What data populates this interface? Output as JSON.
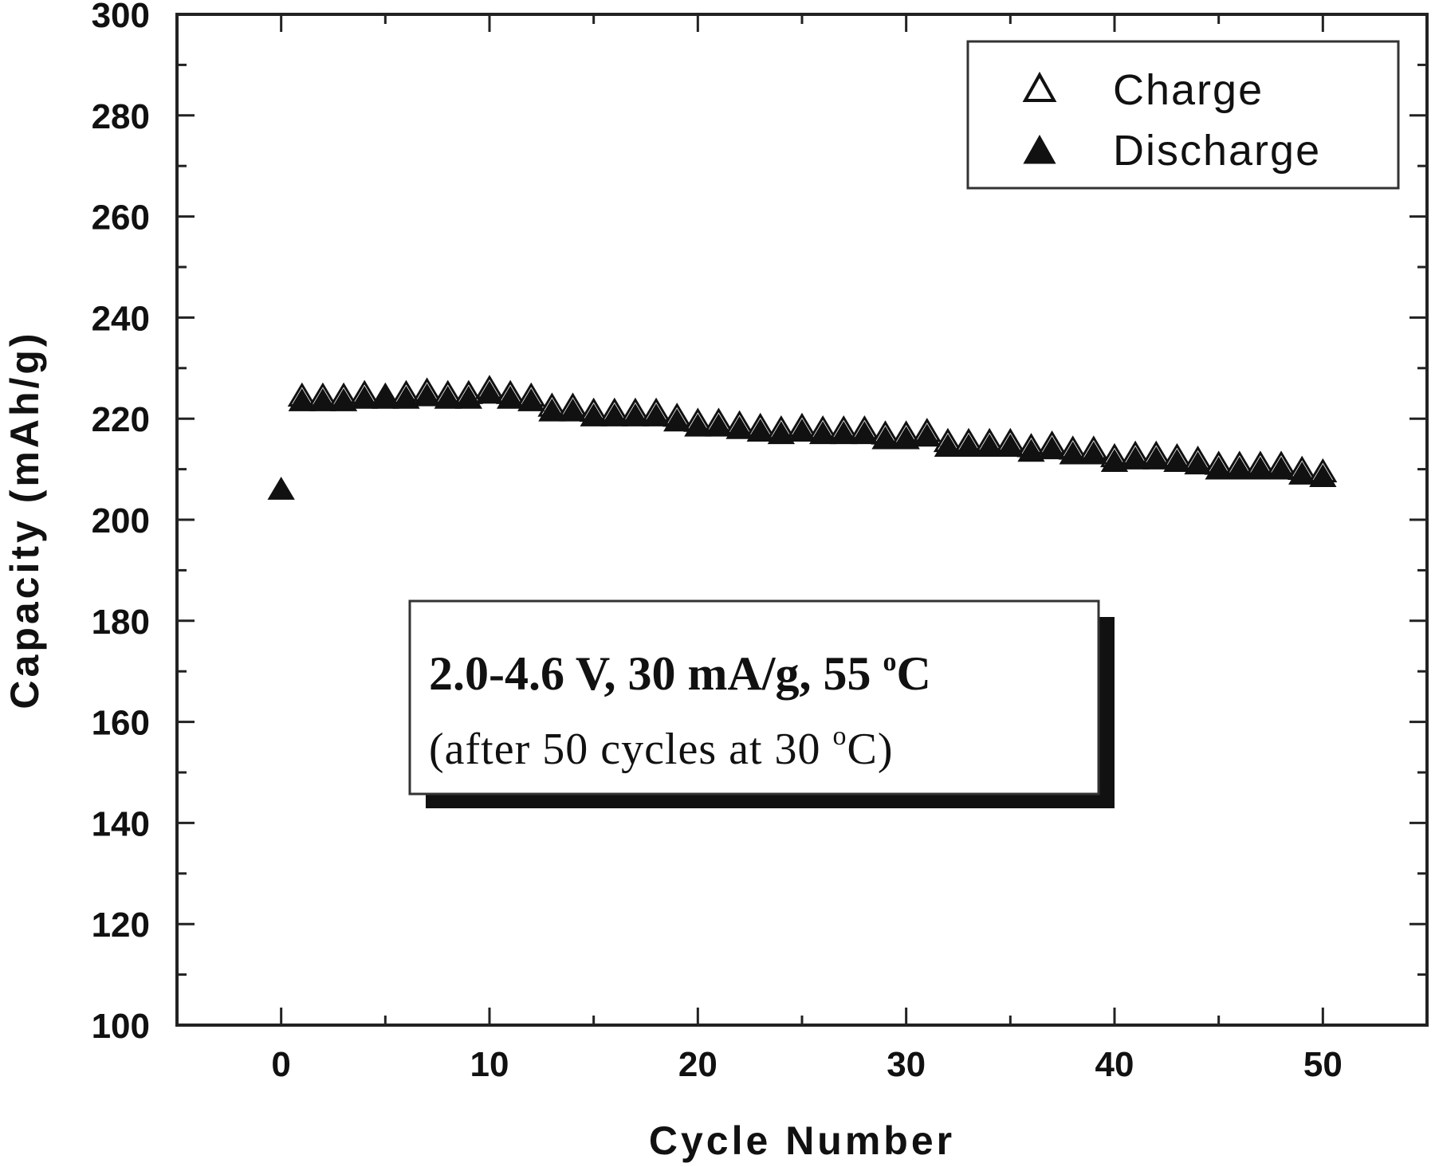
{
  "chart_data": {
    "type": "scatter",
    "xlabel": "Cycle Number",
    "ylabel": "Capacity (mAh/g)",
    "xlim": [
      -5,
      55
    ],
    "ylim": [
      100,
      300
    ],
    "x_ticks": [
      0,
      10,
      20,
      30,
      40,
      50
    ],
    "y_ticks": [
      100,
      120,
      140,
      160,
      180,
      200,
      220,
      240,
      260,
      280,
      300
    ],
    "legend_position": "top-right",
    "grid": false,
    "series": [
      {
        "name": "Charge",
        "marker": "open-triangle",
        "x": [
          1,
          2,
          3,
          4,
          5,
          6,
          7,
          8,
          9,
          10,
          11,
          12,
          13,
          14,
          15,
          16,
          17,
          18,
          19,
          20,
          21,
          22,
          23,
          24,
          25,
          26,
          27,
          28,
          29,
          30,
          31,
          32,
          33,
          34,
          35,
          36,
          37,
          38,
          39,
          40,
          41,
          42,
          43,
          44,
          45,
          46,
          47,
          48,
          49,
          50
        ],
        "values": [
          224.5,
          224.5,
          224.5,
          225,
          224.5,
          225,
          225.5,
          225,
          225,
          226,
          225,
          224.5,
          222.5,
          222.5,
          221.5,
          221.5,
          221.5,
          221.5,
          220.5,
          219.5,
          219.5,
          219,
          218.5,
          218,
          218.5,
          218,
          218,
          218,
          217,
          217,
          217.5,
          215.5,
          215.5,
          215.5,
          215.5,
          214.5,
          215,
          214,
          214,
          212.5,
          213,
          213,
          212.5,
          212,
          211,
          211,
          211,
          211,
          210,
          209.5
        ]
      },
      {
        "name": "Discharge",
        "marker": "filled-triangle",
        "x": [
          0,
          1,
          2,
          3,
          4,
          5,
          6,
          7,
          8,
          9,
          10,
          11,
          12,
          13,
          14,
          15,
          16,
          17,
          18,
          19,
          20,
          21,
          22,
          23,
          24,
          25,
          26,
          27,
          28,
          29,
          30,
          31,
          32,
          33,
          34,
          35,
          36,
          37,
          38,
          39,
          40,
          41,
          42,
          43,
          44,
          45,
          46,
          47,
          48,
          49,
          50
        ],
        "values": [
          206,
          223.5,
          223.5,
          223.5,
          224,
          224,
          224,
          224.5,
          224,
          224,
          225,
          224,
          223.5,
          221.5,
          221.5,
          220.5,
          220.5,
          220.5,
          220.5,
          219.5,
          218.5,
          218.5,
          218,
          217.5,
          217,
          217.5,
          217,
          217,
          217,
          216,
          216,
          216.5,
          214.5,
          214.5,
          214.5,
          214.5,
          213.5,
          214,
          213,
          213,
          211.5,
          212,
          212,
          211.5,
          211,
          210,
          210,
          210,
          210,
          209,
          208.5
        ]
      }
    ],
    "annotation": {
      "line1_text": "2.0-4.6 V, 30 mA/g, 55 ",
      "line1_sup": "o",
      "line1_tail": "C",
      "line2_text": "(after 50 cycles at 30 ",
      "line2_sup": "o",
      "line2_tail": "C)"
    }
  }
}
